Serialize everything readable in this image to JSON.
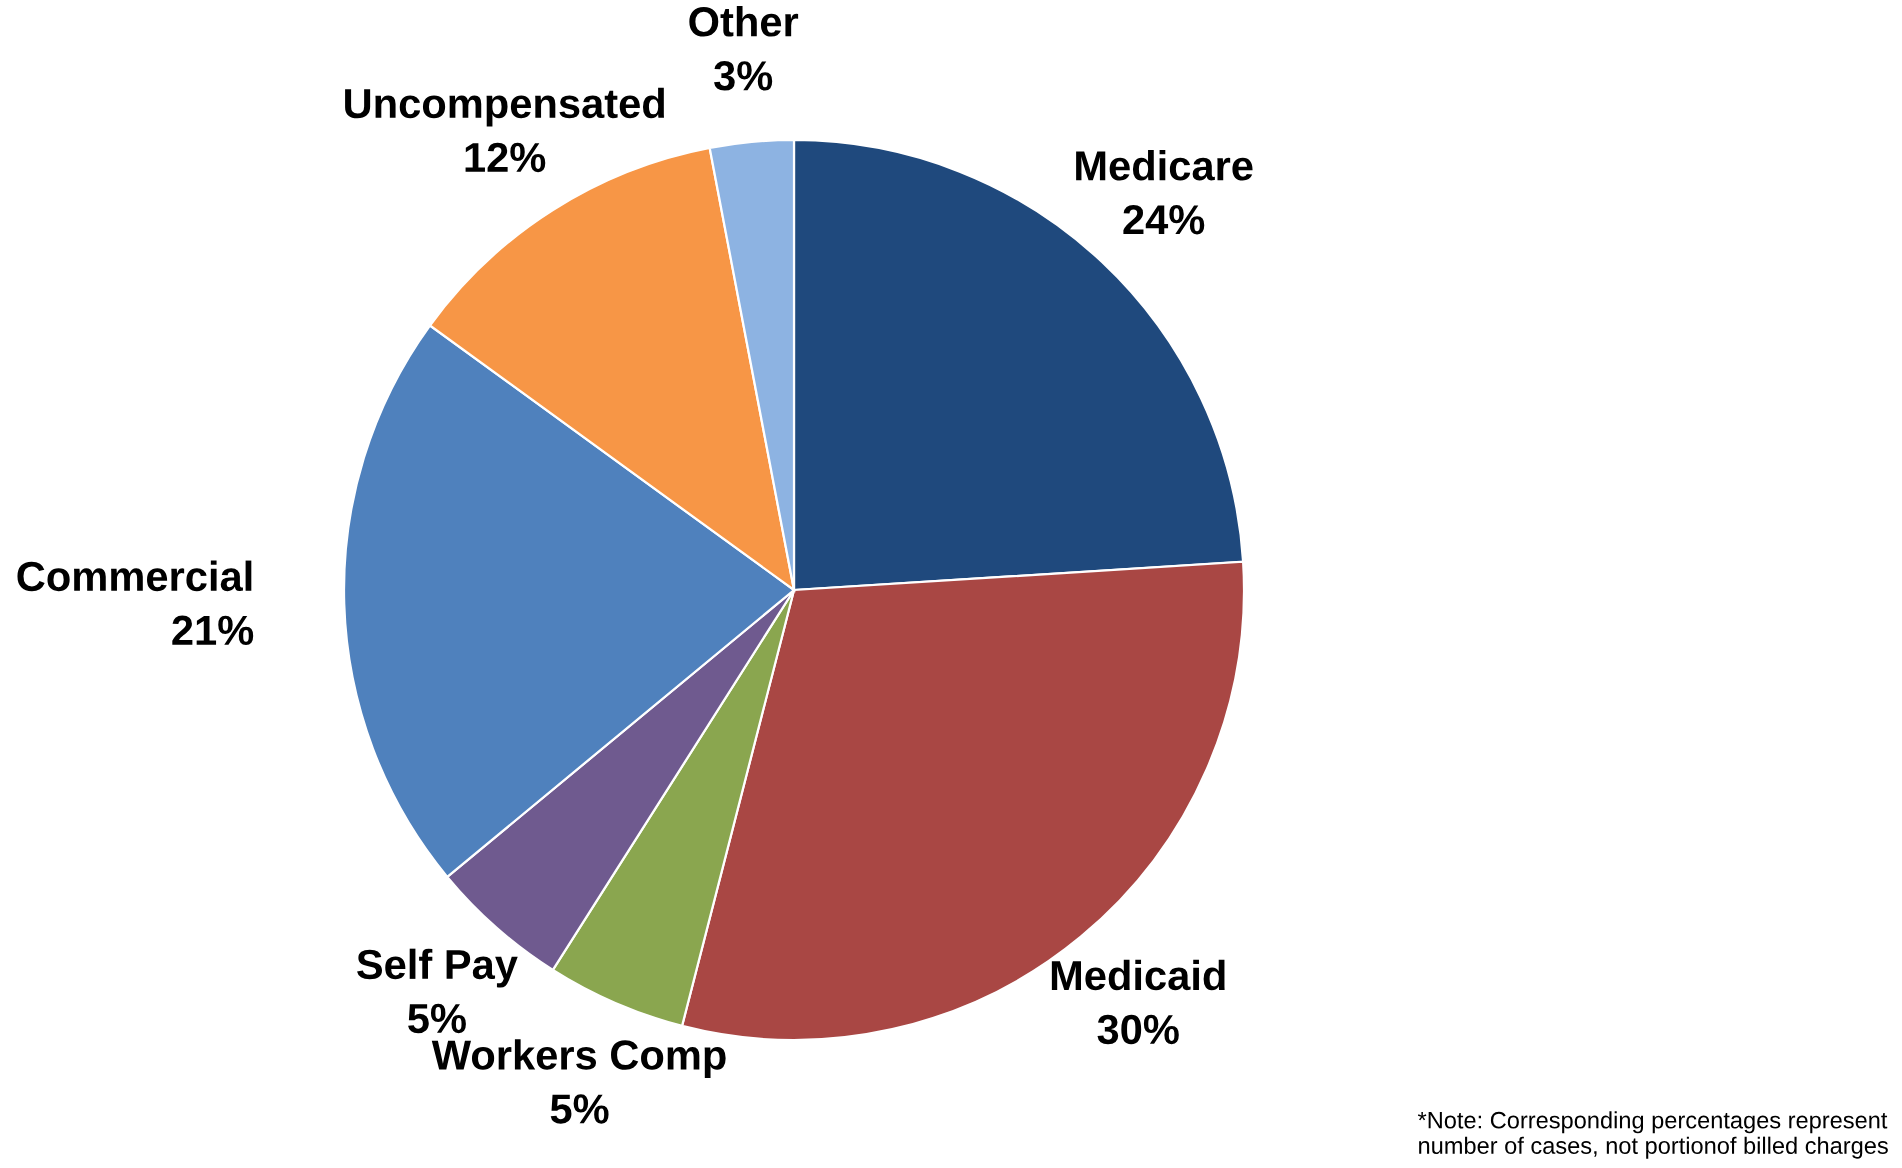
{
  "chart_data": {
    "type": "pie",
    "categories": [
      "Medicare",
      "Medicaid",
      "Workers Comp",
      "Self Pay",
      "Commercial",
      "Uncompensated",
      "Other"
    ],
    "values": [
      24,
      30,
      5,
      5,
      21,
      12,
      3
    ],
    "colors": [
      "#1f497d",
      "#a94744",
      "#8aa64f",
      "#6f5a8f",
      "#4f81bd",
      "#f79646",
      "#8db3e2"
    ],
    "value_labels": [
      "24%",
      "30%",
      "5%",
      "5%",
      "21%",
      "12%",
      "3%"
    ],
    "legend": false,
    "annotations": [
      "*Note: Corresponding percentages represent\nnumber of cases, not portionof billed charges"
    ]
  }
}
